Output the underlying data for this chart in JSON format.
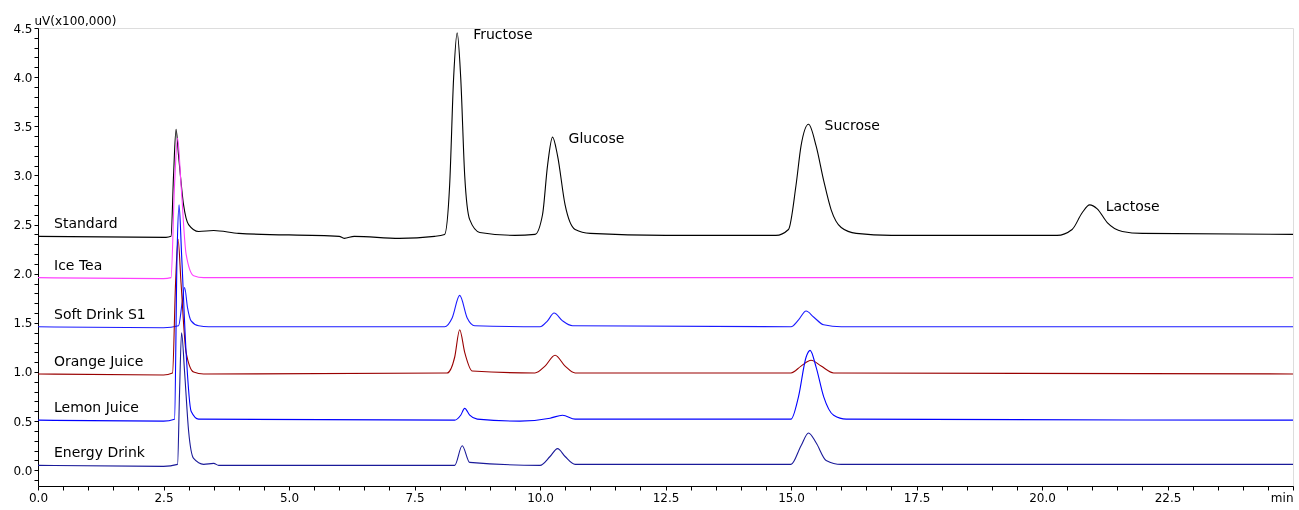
{
  "chart_data": {
    "type": "line",
    "xlabel": "min",
    "ylabel": "uV(x100,000)",
    "xlim": [
      0,
      25
    ],
    "ylim": [
      -0.16,
      4.5
    ],
    "xticks": [
      {
        "value": 0,
        "label": "0.0"
      },
      {
        "value": 0.5,
        "label": null
      },
      {
        "value": 1,
        "label": null
      },
      {
        "value": 1.5,
        "label": null
      },
      {
        "value": 2,
        "label": null
      },
      {
        "value": 2.5,
        "label": "2.5"
      },
      {
        "value": 3,
        "label": null
      },
      {
        "value": 3.5,
        "label": null
      },
      {
        "value": 4,
        "label": null
      },
      {
        "value": 4.5,
        "label": null
      },
      {
        "value": 5,
        "label": "5.0"
      },
      {
        "value": 5.5,
        "label": null
      },
      {
        "value": 6,
        "label": null
      },
      {
        "value": 6.5,
        "label": null
      },
      {
        "value": 7,
        "label": null
      },
      {
        "value": 7.5,
        "label": "7.5"
      },
      {
        "value": 8,
        "label": null
      },
      {
        "value": 8.5,
        "label": null
      },
      {
        "value": 9,
        "label": null
      },
      {
        "value": 9.5,
        "label": null
      },
      {
        "value": 10,
        "label": "10.0"
      },
      {
        "value": 10.5,
        "label": null
      },
      {
        "value": 11,
        "label": null
      },
      {
        "value": 11.5,
        "label": null
      },
      {
        "value": 12,
        "label": null
      },
      {
        "value": 12.5,
        "label": "12.5"
      },
      {
        "value": 13,
        "label": null
      },
      {
        "value": 13.5,
        "label": null
      },
      {
        "value": 14,
        "label": null
      },
      {
        "value": 14.5,
        "label": null
      },
      {
        "value": 15,
        "label": "15.0"
      },
      {
        "value": 15.5,
        "label": null
      },
      {
        "value": 16,
        "label": null
      },
      {
        "value": 16.5,
        "label": null
      },
      {
        "value": 17,
        "label": null
      },
      {
        "value": 17.5,
        "label": "17.5"
      },
      {
        "value": 18,
        "label": null
      },
      {
        "value": 18.5,
        "label": null
      },
      {
        "value": 19,
        "label": null
      },
      {
        "value": 19.5,
        "label": null
      },
      {
        "value": 20,
        "label": "20.0"
      },
      {
        "value": 20.5,
        "label": null
      },
      {
        "value": 21,
        "label": null
      },
      {
        "value": 21.5,
        "label": null
      },
      {
        "value": 22,
        "label": null
      },
      {
        "value": 22.5,
        "label": "22.5"
      },
      {
        "value": 23,
        "label": null
      },
      {
        "value": 23.5,
        "label": null
      },
      {
        "value": 24,
        "label": null
      },
      {
        "value": 24.5,
        "label": null
      },
      {
        "value": 25,
        "label": null
      }
    ],
    "yticks": [
      {
        "value": -0.1,
        "label": null
      },
      {
        "value": 0,
        "label": "0.0"
      },
      {
        "value": 0.1,
        "label": null
      },
      {
        "value": 0.2,
        "label": null
      },
      {
        "value": 0.3,
        "label": null
      },
      {
        "value": 0.4,
        "label": null
      },
      {
        "value": 0.5,
        "label": "0.5"
      },
      {
        "value": 0.6,
        "label": null
      },
      {
        "value": 0.7,
        "label": null
      },
      {
        "value": 0.8,
        "label": null
      },
      {
        "value": 0.9,
        "label": null
      },
      {
        "value": 1,
        "label": "1.0"
      },
      {
        "value": 1.1,
        "label": null
      },
      {
        "value": 1.2,
        "label": null
      },
      {
        "value": 1.3,
        "label": null
      },
      {
        "value": 1.4,
        "label": null
      },
      {
        "value": 1.5,
        "label": "1.5"
      },
      {
        "value": 1.6,
        "label": null
      },
      {
        "value": 1.7,
        "label": null
      },
      {
        "value": 1.8,
        "label": null
      },
      {
        "value": 1.9,
        "label": null
      },
      {
        "value": 2,
        "label": "2.0"
      },
      {
        "value": 2.1,
        "label": null
      },
      {
        "value": 2.2,
        "label": null
      },
      {
        "value": 2.3,
        "label": null
      },
      {
        "value": 2.4,
        "label": null
      },
      {
        "value": 2.5,
        "label": "2.5"
      },
      {
        "value": 2.6,
        "label": null
      },
      {
        "value": 2.7,
        "label": null
      },
      {
        "value": 2.8,
        "label": null
      },
      {
        "value": 2.9,
        "label": null
      },
      {
        "value": 3,
        "label": "3.0"
      },
      {
        "value": 3.1,
        "label": null
      },
      {
        "value": 3.2,
        "label": null
      },
      {
        "value": 3.3,
        "label": null
      },
      {
        "value": 3.4,
        "label": null
      },
      {
        "value": 3.5,
        "label": "3.5"
      },
      {
        "value": 3.6,
        "label": null
      },
      {
        "value": 3.7,
        "label": null
      },
      {
        "value": 3.8,
        "label": null
      },
      {
        "value": 3.9,
        "label": null
      },
      {
        "value": 4,
        "label": "4.0"
      },
      {
        "value": 4.1,
        "label": null
      },
      {
        "value": 4.2,
        "label": null
      },
      {
        "value": 4.3,
        "label": null
      },
      {
        "value": 4.4,
        "label": null
      },
      {
        "value": 4.5,
        "label": "4.5"
      }
    ],
    "grid": false,
    "legend": false,
    "marker": "none",
    "line_style": "solid",
    "series": [
      {
        "name": "Standard",
        "color": "#000000",
        "x": [
          0,
          2.55,
          2.65,
          2.7,
          2.75,
          2.8,
          2.9,
          3.0,
          3.2,
          3.5,
          4.0,
          6.0,
          6.1,
          6.3,
          7.2,
          7.9,
          8.1,
          8.2,
          8.28,
          8.35,
          8.42,
          8.5,
          8.6,
          8.8,
          9.5,
          9.9,
          10.05,
          10.15,
          10.25,
          10.35,
          10.5,
          10.7,
          11.0,
          12.5,
          14.7,
          14.95,
          15.1,
          15.2,
          15.35,
          15.5,
          15.65,
          15.8,
          16.0,
          16.3,
          17.0,
          20.3,
          20.6,
          20.8,
          20.95,
          21.1,
          21.3,
          21.6,
          22.0,
          25
        ],
        "values": [
          2.38,
          2.37,
          2.38,
          3.0,
          3.47,
          3.2,
          2.7,
          2.5,
          2.43,
          2.44,
          2.41,
          2.38,
          2.36,
          2.38,
          2.36,
          2.38,
          2.4,
          2.9,
          4.0,
          4.45,
          4.0,
          3.0,
          2.55,
          2.42,
          2.39,
          2.4,
          2.6,
          3.1,
          3.39,
          3.2,
          2.7,
          2.45,
          2.41,
          2.39,
          2.39,
          2.45,
          2.9,
          3.3,
          3.52,
          3.3,
          2.95,
          2.65,
          2.47,
          2.41,
          2.39,
          2.39,
          2.45,
          2.62,
          2.7,
          2.66,
          2.52,
          2.43,
          2.41,
          2.4
        ]
      },
      {
        "name": "Ice Tea",
        "color": "#ff40ff",
        "x": [
          0,
          2.5,
          2.65,
          2.72,
          2.78,
          2.85,
          2.95,
          3.1,
          3.3,
          25
        ],
        "values": [
          1.96,
          1.95,
          1.96,
          2.9,
          3.38,
          2.9,
          2.2,
          1.98,
          1.96,
          1.96
        ]
      },
      {
        "name": "Soft Drink S1",
        "color": "#1a1aff",
        "x": [
          0,
          2.5,
          2.8,
          2.87,
          2.92,
          2.98,
          3.05,
          3.2,
          3.4,
          8.1,
          8.25,
          8.4,
          8.55,
          8.7,
          10.0,
          10.15,
          10.28,
          10.45,
          10.65,
          15.0,
          15.15,
          15.3,
          15.45,
          15.65,
          16.0,
          25
        ],
        "values": [
          1.46,
          1.45,
          1.47,
          1.7,
          1.86,
          1.65,
          1.52,
          1.47,
          1.46,
          1.46,
          1.55,
          1.78,
          1.55,
          1.47,
          1.46,
          1.52,
          1.6,
          1.52,
          1.47,
          1.46,
          1.53,
          1.62,
          1.56,
          1.48,
          1.46,
          1.46
        ]
      },
      {
        "name": "Orange Juice",
        "color": "#990000",
        "x": [
          0,
          2.5,
          2.68,
          2.74,
          2.79,
          2.85,
          2.95,
          3.1,
          3.3,
          8.15,
          8.3,
          8.4,
          8.5,
          8.65,
          9.9,
          10.1,
          10.3,
          10.5,
          10.7,
          15.0,
          15.2,
          15.4,
          15.6,
          15.85,
          25
        ],
        "values": [
          0.98,
          0.97,
          0.99,
          1.9,
          2.35,
          1.9,
          1.2,
          1.0,
          0.98,
          0.99,
          1.15,
          1.43,
          1.2,
          1.01,
          0.99,
          1.06,
          1.17,
          1.06,
          0.99,
          0.99,
          1.06,
          1.12,
          1.06,
          0.99,
          0.98
        ]
      },
      {
        "name": "Lemon Juice",
        "color": "#0000ff",
        "x": [
          0,
          2.5,
          2.72,
          2.77,
          2.81,
          2.86,
          2.95,
          3.05,
          3.2,
          8.3,
          8.42,
          8.5,
          8.6,
          8.75,
          9.6,
          10.2,
          10.45,
          10.7,
          15.0,
          15.15,
          15.3,
          15.38,
          15.5,
          15.65,
          15.85,
          16.1,
          25
        ],
        "values": [
          0.51,
          0.5,
          0.52,
          2.2,
          2.7,
          2.2,
          1.2,
          0.6,
          0.52,
          0.51,
          0.56,
          0.63,
          0.56,
          0.52,
          0.5,
          0.53,
          0.56,
          0.52,
          0.52,
          0.75,
          1.15,
          1.22,
          1.05,
          0.75,
          0.56,
          0.52,
          0.51
        ]
      },
      {
        "name": "Energy Drink",
        "color": "#1a1a99",
        "x": [
          0,
          2.5,
          2.78,
          2.82,
          2.86,
          2.92,
          3.0,
          3.1,
          3.3,
          3.5,
          3.6,
          8.3,
          8.45,
          8.6,
          10.0,
          10.2,
          10.35,
          10.5,
          10.7,
          15.0,
          15.2,
          15.35,
          15.5,
          15.7,
          16.0,
          25
        ],
        "values": [
          0.05,
          0.04,
          0.06,
          0.8,
          1.4,
          1.0,
          0.4,
          0.12,
          0.06,
          0.07,
          0.05,
          0.05,
          0.25,
          0.08,
          0.05,
          0.14,
          0.22,
          0.14,
          0.06,
          0.06,
          0.25,
          0.38,
          0.28,
          0.1,
          0.06,
          0.06
        ]
      }
    ],
    "annotations": [
      {
        "text": "Fructose",
        "x": 8.35,
        "y": 4.45
      },
      {
        "text": "Glucose",
        "x": 10.25,
        "y": 3.39
      },
      {
        "text": "Sucrose",
        "x": 15.35,
        "y": 3.52
      },
      {
        "text": "Lactose",
        "x": 20.95,
        "y": 2.7
      }
    ]
  }
}
